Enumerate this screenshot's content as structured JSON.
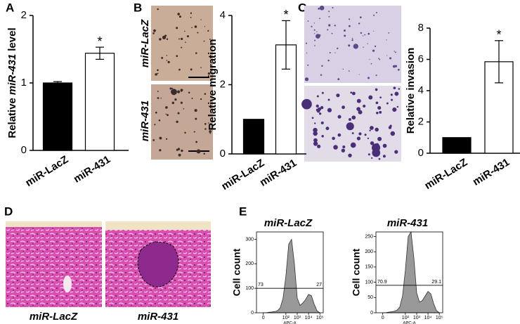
{
  "panel_labels": [
    "A",
    "B",
    "C",
    "D",
    "E"
  ],
  "panel_b_image_labels": [
    "miR-LacZ",
    "miR-431"
  ],
  "panel_d_image_labels": [
    "miR-LacZ",
    "miR-431"
  ],
  "chart_data": [
    {
      "type": "bar",
      "categories": [
        "miR-LacZ",
        "miR-431"
      ],
      "values": [
        1.0,
        1.44
      ],
      "errors": [
        0.02,
        0.09
      ],
      "significance": [
        null,
        "*"
      ],
      "colors": [
        "#000000",
        "#ffffff"
      ],
      "ylabel_parts": [
        {
          "text": "Relative",
          "italic": false
        },
        {
          "text": "miR-431",
          "italic": true
        },
        {
          "text": "level",
          "italic": false
        }
      ],
      "ylim": [
        0,
        2
      ],
      "yticks": [
        0,
        1,
        2
      ]
    },
    {
      "type": "bar",
      "categories": [
        "miR-LacZ",
        "miR-431"
      ],
      "values": [
        1.0,
        3.15
      ],
      "errors": [
        null,
        0.7
      ],
      "significance": [
        null,
        "*"
      ],
      "colors": [
        "#000000",
        "#ffffff"
      ],
      "ylabel_parts": [
        {
          "text": "Relative migration",
          "italic": false
        }
      ],
      "ylim": [
        0,
        4
      ],
      "yticks": [
        0,
        2,
        4
      ]
    },
    {
      "type": "bar",
      "categories": [
        "miR-LacZ",
        "miR-431"
      ],
      "values": [
        1.0,
        5.85
      ],
      "errors": [
        null,
        1.35
      ],
      "significance": [
        null,
        "*"
      ],
      "colors": [
        "#000000",
        "#ffffff"
      ],
      "ylabel_parts": [
        {
          "text": "Relative invasion",
          "italic": false
        }
      ],
      "ylim": [
        0,
        8
      ],
      "yticks": [
        0,
        2,
        4,
        6,
        8
      ]
    },
    {
      "type": "area",
      "title": "miR-LacZ",
      "ylabel": "Cell count",
      "xlabel": "APC-A",
      "color": "#999999",
      "x": [
        0,
        0.25,
        0.5,
        0.75,
        1,
        1.25,
        1.5,
        1.75,
        2,
        2.25,
        2.5,
        2.75,
        3,
        3.25,
        3.5,
        3.75,
        4,
        4.25,
        4.5,
        4.75,
        5
      ],
      "values": [
        0,
        0,
        2,
        3,
        5,
        8,
        20,
        60,
        150,
        280,
        300,
        200,
        60,
        30,
        40,
        55,
        75,
        70,
        35,
        8,
        0
      ],
      "gate": {
        "y": 100,
        "left": "73",
        "right": "27"
      },
      "xlim": [
        -0.6,
        5.3
      ],
      "xticks": [
        {
          "value": 0,
          "label": "0"
        },
        {
          "value": 2,
          "label": "10²"
        },
        {
          "value": 3,
          "label": "10³"
        },
        {
          "value": 4,
          "label": "10⁴"
        },
        {
          "value": 5,
          "label": "10⁵"
        }
      ],
      "ylim": [
        0,
        330
      ],
      "yticks": [
        0,
        100,
        200,
        300
      ]
    },
    {
      "type": "area",
      "title": "miR-431",
      "ylabel": "Cell count",
      "xlabel": "APC-A",
      "color": "#999999",
      "x": [
        0,
        0.25,
        0.5,
        0.75,
        1,
        1.25,
        1.5,
        1.75,
        2,
        2.25,
        2.5,
        2.75,
        3,
        3.25,
        3.5,
        3.75,
        4,
        4.25,
        4.5,
        4.75,
        5
      ],
      "values": [
        0,
        0,
        2,
        3,
        5,
        8,
        18,
        55,
        140,
        250,
        265,
        180,
        65,
        35,
        40,
        55,
        70,
        62,
        30,
        7,
        0
      ],
      "gate": {
        "y": 90,
        "left": "70.9",
        "right": "29.1"
      },
      "xlim": [
        -0.6,
        5.3
      ],
      "xticks": [
        {
          "value": 0,
          "label": "0"
        },
        {
          "value": 2,
          "label": "10²"
        },
        {
          "value": 3,
          "label": "10³"
        },
        {
          "value": 4,
          "label": "10⁴"
        },
        {
          "value": 5,
          "label": "10⁵"
        }
      ],
      "ylim": [
        0,
        265
      ],
      "yticks": [
        0,
        50,
        100,
        150,
        200,
        250
      ]
    }
  ]
}
